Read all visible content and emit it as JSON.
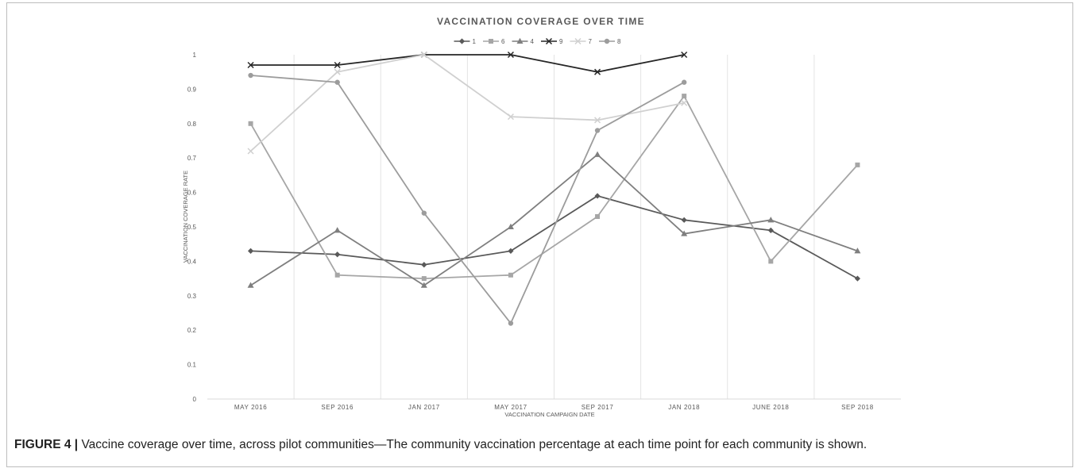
{
  "chart_data": {
    "type": "line",
    "title": "VACCINATION COVERAGE OVER TIME",
    "xlabel": "VACCINATION CAMPAIGN DATE",
    "ylabel": "VACCINATION COVERAGE RATE",
    "ylim": [
      0,
      1
    ],
    "yticks": [
      "0",
      "0.1",
      "0.2",
      "0.3",
      "0.4",
      "0.5",
      "0.6",
      "0.7",
      "0.8",
      "0.9",
      "1"
    ],
    "categories": [
      "MAY 2016",
      "SEP 2016",
      "JAN 2017",
      "MAY 2017",
      "SEP 2017",
      "JAN 2018",
      "JUNE 2018",
      "SEP 2018"
    ],
    "legend_position": "top",
    "grid": "vertical",
    "series": [
      {
        "name": "1",
        "color": "#595959",
        "marker": "diamond",
        "values": [
          0.43,
          0.42,
          0.39,
          0.43,
          0.59,
          0.52,
          0.49,
          0.35
        ]
      },
      {
        "name": "6",
        "color": "#a6a6a6",
        "marker": "square",
        "values": [
          0.8,
          0.36,
          0.35,
          0.36,
          0.53,
          0.88,
          0.4,
          0.68
        ]
      },
      {
        "name": "4",
        "color": "#7f7f7f",
        "marker": "triangle",
        "values": [
          0.33,
          0.49,
          0.33,
          0.5,
          0.71,
          0.48,
          0.52,
          0.43
        ]
      },
      {
        "name": "9",
        "color": "#262626",
        "marker": "x",
        "values": [
          0.97,
          0.97,
          1.0,
          1.0,
          0.95,
          1.0,
          null,
          null
        ]
      },
      {
        "name": "7",
        "color": "#d0d0d0",
        "marker": "x",
        "values": [
          0.72,
          0.95,
          1.0,
          0.82,
          0.81,
          0.86,
          null,
          null
        ]
      },
      {
        "name": "8",
        "color": "#9c9c9c",
        "marker": "circle",
        "values": [
          0.94,
          0.92,
          0.54,
          0.22,
          0.78,
          0.92,
          null,
          null
        ]
      }
    ]
  },
  "caption": {
    "label": "FIGURE 4 |",
    "text": " Vaccine coverage over time, across pilot communities—The community vaccination percentage at each time point for each community is shown."
  }
}
